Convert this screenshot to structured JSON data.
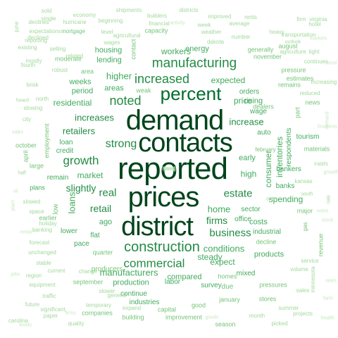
{
  "colors": {
    "background": "#ffffff",
    "shades": [
      "#00441b",
      "#006d2c",
      "#238b45",
      "#41ab5d",
      "#74c476",
      "#a1d99b",
      "#c7e9c0"
    ]
  },
  "words": [
    {
      "text": "reported",
      "shade": 0
    },
    {
      "text": "demand",
      "shade": 0
    },
    {
      "text": "contacts",
      "shade": 0
    },
    {
      "text": "prices",
      "shade": 0
    },
    {
      "text": "district",
      "shade": 0
    },
    {
      "text": "percent",
      "shade": 1
    },
    {
      "text": "construction",
      "shade": 2
    },
    {
      "text": "manufacturing",
      "shade": 2
    },
    {
      "text": "commercial",
      "shade": 2
    },
    {
      "text": "increased",
      "shade": 2
    },
    {
      "text": "noted",
      "shade": 2
    },
    {
      "text": "strong",
      "shade": 2
    },
    {
      "text": "growth",
      "shade": 2
    },
    {
      "text": "real",
      "shade": 2
    },
    {
      "text": "estate",
      "shade": 2
    },
    {
      "text": "business",
      "shade": 2
    },
    {
      "text": "firms",
      "shade": 2
    },
    {
      "text": "increase",
      "shade": 2
    },
    {
      "text": "increases",
      "shade": 2
    },
    {
      "text": "retailers",
      "shade": 2
    },
    {
      "text": "slightly",
      "shade": 2
    },
    {
      "text": "retail",
      "shade": 2
    },
    {
      "text": "manufacturers",
      "shade": 3
    },
    {
      "text": "market",
      "shade": 3
    },
    {
      "text": "higher",
      "shade": 3
    },
    {
      "text": "expected",
      "shade": 3
    },
    {
      "text": "home",
      "shade": 3
    },
    {
      "text": "high",
      "shade": 3
    },
    {
      "text": "conditions",
      "shade": 3
    },
    {
      "text": "residential",
      "shade": 3
    },
    {
      "text": "consumer",
      "shade": 3
    },
    {
      "text": "spending",
      "shade": 3
    },
    {
      "text": "loans",
      "shade": 3
    },
    {
      "text": "steady",
      "shade": 3
    },
    {
      "text": "price",
      "shade": 3
    },
    {
      "text": "expect",
      "shade": 3
    },
    {
      "text": "workers",
      "shade": 3
    },
    {
      "text": "weeks",
      "shade": 3
    },
    {
      "text": "period",
      "shade": 3
    },
    {
      "text": "areas",
      "shade": 3
    },
    {
      "text": "housing",
      "shade": 3
    },
    {
      "text": "lending",
      "shade": 3
    },
    {
      "text": "energy",
      "shade": 3
    },
    {
      "text": "inventories",
      "shade": 3
    },
    {
      "text": "production",
      "shade": 3
    },
    {
      "text": "continue",
      "shade": 3
    },
    {
      "text": "industries",
      "shade": 3
    },
    {
      "text": "compared",
      "shade": 3
    },
    {
      "text": "labor",
      "shade": 3
    },
    {
      "text": "survey",
      "shade": 3
    },
    {
      "text": "products",
      "shade": 3
    },
    {
      "text": "mixed",
      "shade": 3
    },
    {
      "text": "costs",
      "shade": 3
    },
    {
      "text": "office",
      "shade": 3
    },
    {
      "text": "sector",
      "shade": 3
    },
    {
      "text": "industrial",
      "shade": 3
    },
    {
      "text": "pace",
      "shade": 3
    },
    {
      "text": "flat",
      "shade": 3
    },
    {
      "text": "ago",
      "shade": 3
    },
    {
      "text": "lower",
      "shade": 3
    },
    {
      "text": "early",
      "shade": 3
    },
    {
      "text": "banks",
      "shade": 3
    },
    {
      "text": "orders",
      "shade": 3
    },
    {
      "text": "rising",
      "shade": 3
    },
    {
      "text": "wage",
      "shade": 3
    },
    {
      "text": "auto",
      "shade": 3
    },
    {
      "text": "respondents",
      "shade": 3
    },
    {
      "text": "bankers",
      "shade": 3
    },
    {
      "text": "tourism",
      "shade": 3
    },
    {
      "text": "loan",
      "shade": 3
    },
    {
      "text": "credit",
      "shade": 3
    },
    {
      "text": "remain",
      "shade": 3
    },
    {
      "text": "plans",
      "shade": 3
    },
    {
      "text": "employment",
      "shade": 4
    },
    {
      "text": "dealers",
      "shade": 4
    },
    {
      "text": "quarter",
      "shade": 4
    },
    {
      "text": "producers",
      "shade": 4
    },
    {
      "text": "due",
      "shade": 4
    },
    {
      "text": "homes",
      "shade": 4
    },
    {
      "text": "contact",
      "shade": 4
    },
    {
      "text": "weak",
      "shade": 4
    },
    {
      "text": "area",
      "shade": 4
    },
    {
      "text": "earlier",
      "shade": 4
    },
    {
      "text": "low",
      "shade": 4
    },
    {
      "text": "large",
      "shade": 4
    },
    {
      "text": "october",
      "shade": 4
    },
    {
      "text": "april",
      "shade": 4
    },
    {
      "text": "capital",
      "shade": 4
    },
    {
      "text": "good",
      "shade": 4
    },
    {
      "text": "january",
      "shade": 4
    },
    {
      "text": "improvement",
      "shade": 4
    },
    {
      "text": "building",
      "shade": 4
    },
    {
      "text": "companies",
      "shade": 4
    },
    {
      "text": "september",
      "shade": 4
    },
    {
      "text": "season",
      "shade": 4
    },
    {
      "text": "decline",
      "shade": 4
    },
    {
      "text": "part",
      "shade": 4
    },
    {
      "text": "materials",
      "shade": 4
    },
    {
      "text": "major",
      "shade": 4
    },
    {
      "text": "gas",
      "shade": 4
    },
    {
      "text": "revenue",
      "shade": 4
    },
    {
      "text": "pressures",
      "shade": 4
    },
    {
      "text": "stores",
      "shade": 4
    },
    {
      "text": "capacity",
      "shade": 4
    },
    {
      "text": "generally",
      "shade": 4
    },
    {
      "text": "november",
      "shade": 4
    },
    {
      "text": "august",
      "shade": 4
    },
    {
      "text": "estimates",
      "shade": 4
    },
    {
      "text": "remains",
      "shade": 4
    },
    {
      "text": "pressure",
      "shade": 4
    },
    {
      "text": "february",
      "shade": 4
    },
    {
      "text": "news",
      "shade": 4
    },
    {
      "text": "moderate",
      "shade": 4
    },
    {
      "text": "mortgage",
      "shade": 4
    },
    {
      "text": "agricultural",
      "shade": 5
    },
    {
      "text": "level",
      "shade": 5
    },
    {
      "text": "wages",
      "shade": 5
    },
    {
      "text": "financial",
      "shade": 5
    },
    {
      "text": "builders",
      "shade": 5
    },
    {
      "text": "weather",
      "shade": 5
    },
    {
      "text": "improved",
      "shade": 5
    },
    {
      "text": "rents",
      "shade": 5
    },
    {
      "text": "districts",
      "shade": 5
    },
    {
      "text": "shipments",
      "shade": 5
    },
    {
      "text": "economy",
      "shade": 5
    },
    {
      "text": "declines",
      "shade": 5
    },
    {
      "text": "expectations",
      "shade": 5
    },
    {
      "text": "transportation",
      "shade": 5
    },
    {
      "text": "virginia",
      "shade": 5
    },
    {
      "text": "dakota",
      "shade": 5
    },
    {
      "text": "number",
      "shade": 5
    },
    {
      "text": "related",
      "shade": 5
    },
    {
      "text": "reporting",
      "shade": 5
    },
    {
      "text": "existing",
      "shade": 5
    },
    {
      "text": "robust",
      "shade": 5
    },
    {
      "text": "selling",
      "shade": 5
    },
    {
      "text": "brisk",
      "shade": 5
    },
    {
      "text": "agriculture",
      "shade": 5
    },
    {
      "text": "continues",
      "shade": 5
    },
    {
      "text": "increasing",
      "shade": 5
    },
    {
      "text": "reduced",
      "shade": 5
    },
    {
      "text": "hotel",
      "shade": 5
    },
    {
      "text": "tight",
      "shade": 5
    },
    {
      "text": "heavy",
      "shade": 5
    },
    {
      "text": "week",
      "shade": 5
    },
    {
      "text": "average",
      "shade": 5
    },
    {
      "text": "general",
      "shade": 5
    },
    {
      "text": "change",
      "shade": 5
    },
    {
      "text": "forecast",
      "shade": 5
    },
    {
      "text": "stable",
      "shade": 5
    },
    {
      "text": "unchanged",
      "shade": 5
    },
    {
      "text": "current",
      "shade": 5
    },
    {
      "text": "region",
      "shade": 5
    },
    {
      "text": "equipment",
      "shade": 5
    },
    {
      "text": "future",
      "shade": 5
    },
    {
      "text": "traffic",
      "shade": 5
    },
    {
      "text": "significant",
      "shade": 5
    },
    {
      "text": "expand",
      "shade": 5
    },
    {
      "text": "volume",
      "shade": 5
    },
    {
      "text": "projects",
      "shade": 5
    },
    {
      "text": "minnesota",
      "shade": 5
    },
    {
      "text": "summer",
      "shade": 5
    },
    {
      "text": "banking",
      "shade": 5
    },
    {
      "text": "holiday",
      "shade": 5
    },
    {
      "text": "temporary",
      "shade": 5
    },
    {
      "text": "quality",
      "shade": 5
    },
    {
      "text": "declined",
      "shade": 5
    },
    {
      "text": "slowed",
      "shade": 5
    },
    {
      "text": "slowing",
      "shade": 5
    },
    {
      "text": "beginning",
      "shade": 5
    },
    {
      "text": "june",
      "shade": 5
    },
    {
      "text": "fourth",
      "shade": 5
    },
    {
      "text": "single",
      "shade": 5
    },
    {
      "text": "sold",
      "shade": 5
    },
    {
      "text": "hurricane",
      "shade": 5
    },
    {
      "text": "firm",
      "shade": 5
    },
    {
      "text": "north",
      "shade": 5
    },
    {
      "text": "slower",
      "shade": 5
    },
    {
      "text": "service",
      "shade": 5
    },
    {
      "text": "month",
      "shade": 5
    },
    {
      "text": "picked",
      "shade": 5
    },
    {
      "text": "mostly",
      "shade": 5
    },
    {
      "text": "paper",
      "shade": 5
    },
    {
      "text": "space",
      "shade": 5
    },
    {
      "text": "sales",
      "shade": 5
    },
    {
      "text": "carolina",
      "shade": 5
    },
    {
      "text": "city",
      "shade": 5
    },
    {
      "text": "kansas",
      "shade": 5
    },
    {
      "text": "heard",
      "shade": 5
    },
    {
      "text": "order",
      "shade": 5
    },
    {
      "text": "supply",
      "shade": 5
    },
    {
      "text": "half",
      "shade": 5
    },
    {
      "text": "rate",
      "shade": 5
    },
    {
      "text": "south",
      "shade": 5
    },
    {
      "text": "outlook",
      "shade": 5
    },
    {
      "text": "firms",
      "shade": 6
    },
    {
      "text": "activity",
      "shade": 6
    },
    {
      "text": "rental",
      "shade": 6
    },
    {
      "text": "demand",
      "shade": 6
    },
    {
      "text": "levels",
      "shade": 6
    },
    {
      "text": "notes",
      "shade": 6
    },
    {
      "text": "plant",
      "shade": 6
    },
    {
      "text": "rates",
      "shade": 6
    },
    {
      "text": "stock",
      "shade": 6
    },
    {
      "text": "goods",
      "shade": 6
    },
    {
      "text": "health",
      "shade": 6
    },
    {
      "text": "markets",
      "shade": 6
    },
    {
      "text": "business",
      "shade": 6
    },
    {
      "text": "jobs",
      "shade": 6
    },
    {
      "text": "growth",
      "shade": 6
    },
    {
      "text": "sales",
      "shade": 6
    },
    {
      "text": "trend",
      "shade": 6
    },
    {
      "text": "oil",
      "shade": 6
    },
    {
      "text": "farm",
      "shade": 6
    },
    {
      "text": "fuel",
      "shade": 6
    },
    {
      "text": "hiring",
      "shade": 6
    },
    {
      "text": "year",
      "shade": 6
    },
    {
      "text": "steel",
      "shade": 6
    },
    {
      "text": "fees",
      "shade": 6
    }
  ]
}
